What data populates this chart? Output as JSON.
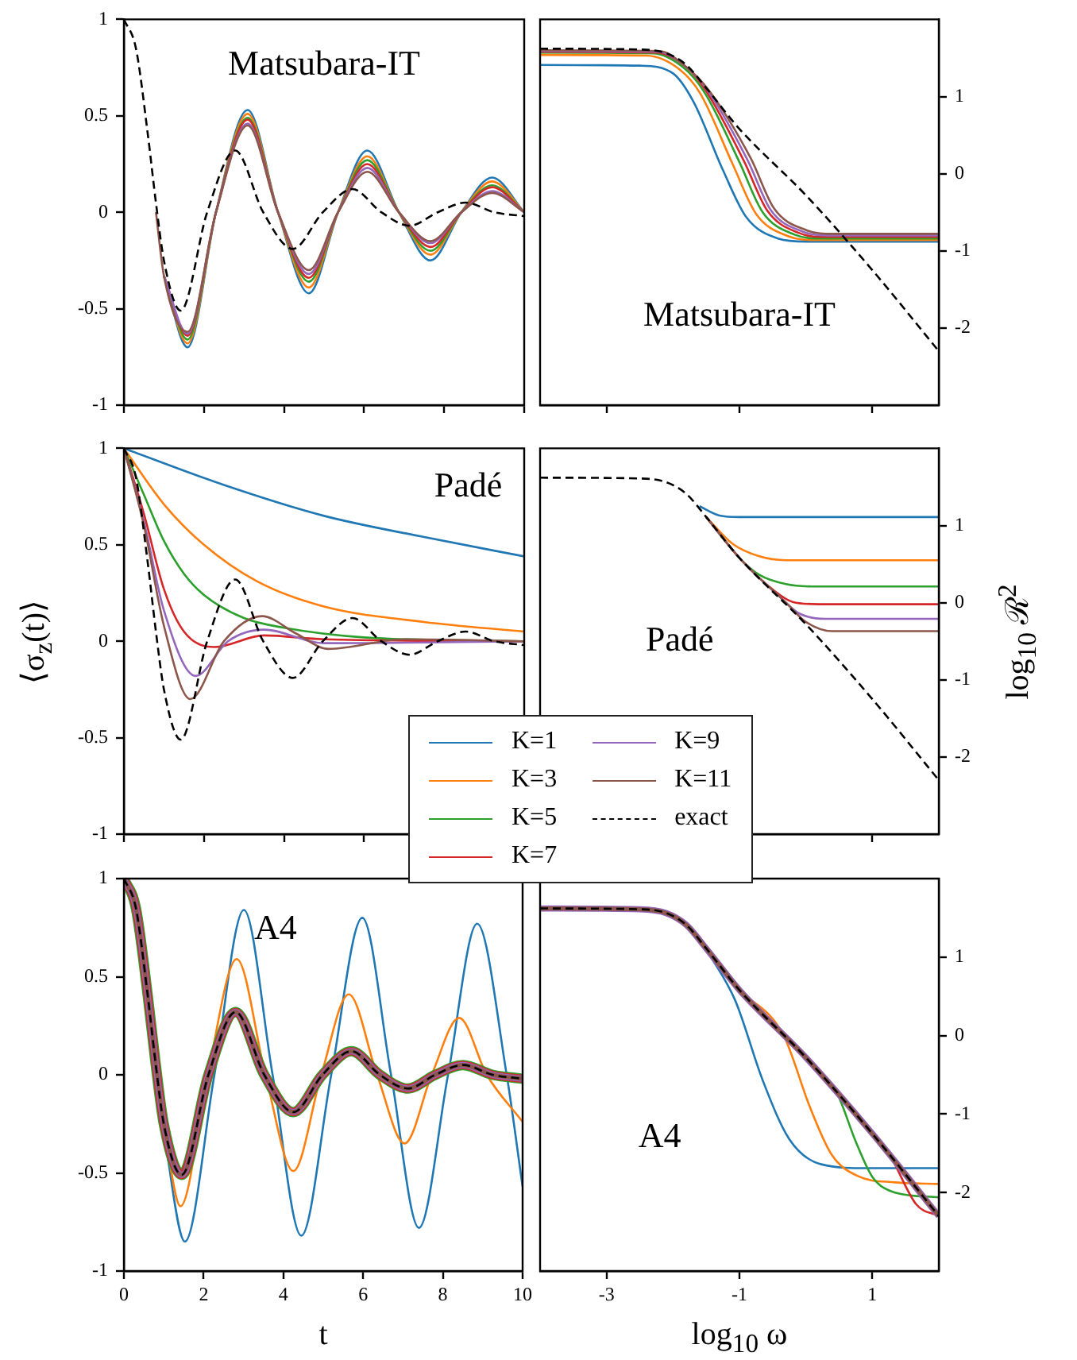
{
  "chart_data": [
    {
      "type": "line",
      "title": "Matsubara-IT",
      "xlim": [
        0,
        10
      ],
      "xticks": [
        0,
        2,
        4,
        6,
        8,
        10
      ],
      "ylim": [
        -1,
        1
      ],
      "yticks": [
        -1,
        -0.5,
        0,
        0.5,
        1
      ],
      "tick_labels": "y",
      "series": [
        {
          "color": "#1f77b4",
          "x": [
            1.0,
            1.59,
            2.3,
            3.09,
            3.85,
            4.62,
            5.35,
            6.08,
            6.87,
            7.66,
            8.43,
            9.2,
            10
          ],
          "values": [
            -0.33,
            -0.7,
            0,
            0.53,
            0,
            -0.42,
            0,
            0.32,
            0,
            -0.25,
            0,
            0.18,
            0
          ]
        },
        {
          "color": "#ff7f0e",
          "x": [
            1.0,
            1.59,
            2.3,
            3.09,
            3.85,
            4.62,
            5.35,
            6.08,
            6.87,
            7.66,
            8.43,
            9.2,
            10
          ],
          "values": [
            -0.33,
            -0.68,
            0,
            0.51,
            0,
            -0.39,
            0,
            0.29,
            0,
            -0.22,
            0,
            0.16,
            0
          ]
        },
        {
          "color": "#2ca02c",
          "x": [
            1.0,
            1.59,
            2.3,
            3.09,
            3.85,
            4.62,
            5.35,
            6.08,
            6.87,
            7.66,
            8.43,
            9.2,
            10
          ],
          "values": [
            -0.33,
            -0.66,
            0,
            0.49,
            0,
            -0.36,
            0,
            0.27,
            0,
            -0.2,
            0,
            0.14,
            0
          ]
        },
        {
          "color": "#d62728",
          "x": [
            1.0,
            1.59,
            2.3,
            3.09,
            3.85,
            4.62,
            5.35,
            6.08,
            6.87,
            7.66,
            8.43,
            9.2,
            10
          ],
          "values": [
            -0.33,
            -0.64,
            0,
            0.48,
            0,
            -0.34,
            0,
            0.25,
            0,
            -0.18,
            0,
            0.13,
            0
          ]
        },
        {
          "color": "#9467bd",
          "x": [
            1.0,
            1.59,
            2.3,
            3.09,
            3.85,
            4.62,
            5.35,
            6.08,
            6.87,
            7.66,
            8.43,
            9.2,
            10
          ],
          "values": [
            -0.33,
            -0.63,
            0,
            0.46,
            0,
            -0.32,
            0,
            0.23,
            0,
            -0.16,
            0,
            0.11,
            0
          ]
        },
        {
          "color": "#8c564b",
          "x": [
            0.8,
            1.0,
            1.59,
            2.3,
            3.09,
            3.85,
            4.62,
            5.35,
            6.08,
            6.87,
            7.66,
            8.43,
            9.2,
            10
          ],
          "values": [
            0.0,
            -0.33,
            -0.62,
            0,
            0.45,
            0,
            -0.3,
            0,
            0.21,
            0,
            -0.15,
            0,
            0.1,
            0
          ]
        },
        {
          "color": "#000000",
          "line_style": "dashed",
          "x": [
            0,
            0.3,
            0.6,
            0.8,
            1.0,
            1.42,
            2.08,
            2.78,
            3.48,
            4.22,
            4.97,
            5.71,
            6.43,
            7.14,
            7.84,
            8.54,
            9.25,
            10
          ],
          "values": [
            1,
            0.85,
            0.4,
            0.05,
            -0.25,
            -0.51,
            0,
            0.32,
            0,
            -0.19,
            0,
            0.12,
            0,
            -0.07,
            0,
            0.05,
            0,
            -0.02
          ]
        }
      ]
    },
    {
      "type": "line",
      "title": "Matsubara-IT",
      "xlim": [
        -4,
        2
      ],
      "xticks": [
        -3,
        -1,
        1
      ],
      "ylim": [
        -3,
        2
      ],
      "yticks": [
        -2,
        -1,
        0,
        1
      ],
      "tick_labels": "y",
      "series": [
        {
          "color": "#1f77b4",
          "x": [
            -4,
            -2.5,
            -2.0,
            -1.69,
            -1.25,
            -0.9,
            -0.42,
            0,
            2
          ],
          "values": [
            1.41,
            1.4,
            1.3,
            0.93,
            0.05,
            -0.56,
            -0.84,
            -0.88,
            -0.88
          ]
        },
        {
          "color": "#ff7f0e",
          "x": [
            -4,
            -2.4,
            -1.9,
            -1.59,
            -1.1,
            -0.75,
            -0.27,
            0.15,
            2
          ],
          "values": [
            1.54,
            1.53,
            1.35,
            1.04,
            0.12,
            -0.52,
            -0.81,
            -0.86,
            -0.86
          ]
        },
        {
          "color": "#2ca02c",
          "x": [
            -4,
            -2.3,
            -1.85,
            -1.53,
            -1.0,
            -0.65,
            -0.17,
            0.25,
            2
          ],
          "values": [
            1.57,
            1.56,
            1.38,
            1.06,
            0.15,
            -0.5,
            -0.79,
            -0.84,
            -0.84
          ]
        },
        {
          "color": "#d62728",
          "x": [
            -4,
            -2.25,
            -1.8,
            -1.5,
            -0.93,
            -0.58,
            -0.1,
            0.32,
            2
          ],
          "values": [
            1.58,
            1.57,
            1.38,
            1.07,
            0.16,
            -0.48,
            -0.77,
            -0.82,
            -0.82
          ]
        },
        {
          "color": "#9467bd",
          "x": [
            -4,
            -2.22,
            -1.8,
            -1.48,
            -0.88,
            -0.53,
            -0.05,
            0.37,
            2
          ],
          "values": [
            1.59,
            1.58,
            1.38,
            1.08,
            0.18,
            -0.47,
            -0.75,
            -0.8,
            -0.8
          ]
        },
        {
          "color": "#8c564b",
          "x": [
            -4,
            -2.2,
            -1.8,
            -1.46,
            -0.83,
            -0.48,
            0,
            0.42,
            2
          ],
          "values": [
            1.6,
            1.59,
            1.38,
            1.08,
            0.2,
            -0.45,
            -0.73,
            -0.78,
            -0.78
          ]
        },
        {
          "color": "#000000",
          "line_style": "dashed",
          "x": [
            -4,
            -2.5,
            -2.1,
            -1.8,
            -1.5,
            -1,
            0,
            1,
            2
          ],
          "values": [
            1.62,
            1.61,
            1.56,
            1.41,
            1.11,
            0.58,
            -0.28,
            -1.25,
            -2.3
          ]
        }
      ]
    },
    {
      "type": "line",
      "title": "Padé",
      "ylabel": "⟨σ$_{z}$(t)⟩",
      "xlim": [
        0,
        10
      ],
      "xticks": [
        0,
        2,
        4,
        6,
        8,
        10
      ],
      "ylim": [
        -1,
        1
      ],
      "yticks": [
        -1,
        -0.5,
        0,
        0.5,
        1
      ],
      "tick_labels": "y",
      "legend": "bottom right",
      "series": [
        {
          "name": "K=1",
          "color": "#1f77b4",
          "x": [
            0,
            2.5,
            5,
            7.5,
            10
          ],
          "values": [
            1,
            0.81,
            0.65,
            0.54,
            0.44
          ]
        },
        {
          "name": "K=3",
          "color": "#ff7f0e",
          "x": [
            0,
            1,
            2,
            3.33,
            5,
            7.5,
            10
          ],
          "values": [
            1,
            0.71,
            0.5,
            0.31,
            0.18,
            0.1,
            0.05
          ]
        },
        {
          "name": "K=5",
          "color": "#2ca02c",
          "x": [
            0,
            0.5,
            1,
            1.5,
            2,
            3,
            4,
            6,
            10
          ],
          "values": [
            1,
            0.76,
            0.52,
            0.35,
            0.24,
            0.12,
            0.07,
            0.02,
            0
          ]
        },
        {
          "name": "K=7",
          "color": "#d62728",
          "x": [
            0,
            0.5,
            1,
            1.5,
            2.26,
            3.5,
            5,
            10
          ],
          "values": [
            1,
            0.66,
            0.27,
            0.05,
            -0.03,
            0.03,
            0.01,
            0
          ]
        },
        {
          "name": "K=9",
          "color": "#9467bd",
          "x": [
            0,
            0.5,
            1,
            1.79,
            2.6,
            3.5,
            5,
            10
          ],
          "values": [
            1,
            0.62,
            0.16,
            -0.18,
            0,
            0.06,
            -0.01,
            0
          ]
        },
        {
          "name": "K=11",
          "color": "#8c564b",
          "x": [
            0,
            0.5,
            1,
            1.66,
            2.5,
            3.45,
            4.3,
            5.11,
            7,
            10
          ],
          "values": [
            1,
            0.6,
            0.08,
            -0.3,
            0,
            0.13,
            0.04,
            -0.04,
            0.01,
            0
          ]
        },
        {
          "name": "exact",
          "color": "#000000",
          "line_style": "dashed",
          "x": [
            0,
            0.3,
            0.6,
            0.8,
            1.0,
            1.42,
            2.08,
            2.78,
            3.48,
            4.22,
            4.97,
            5.71,
            6.43,
            7.14,
            7.84,
            8.54,
            9.25,
            10
          ],
          "values": [
            1,
            0.85,
            0.4,
            0.05,
            -0.25,
            -0.51,
            0,
            0.32,
            0,
            -0.19,
            0,
            0.12,
            0,
            -0.07,
            0,
            0.05,
            0,
            -0.02
          ]
        }
      ]
    },
    {
      "type": "line",
      "title": "Padé",
      "ylabel": "log$_{10}$ ℛ$^{2}$",
      "xlim": [
        -4,
        2
      ],
      "xticks": [
        -3,
        -1,
        1
      ],
      "ylim": [
        -3,
        2
      ],
      "yticks": [
        -2,
        -1,
        0,
        1
      ],
      "tick_labels": "y",
      "series": [
        {
          "color": "#1f77b4",
          "x": [
            -1.6,
            -1.3,
            -1.0,
            2
          ],
          "values": [
            1.25,
            1.13,
            1.11,
            1.11
          ]
        },
        {
          "color": "#ff7f0e",
          "x": [
            -1.5,
            -1.1,
            -0.7,
            -0.3,
            2
          ],
          "values": [
            1.11,
            0.76,
            0.6,
            0.55,
            0.55
          ]
        },
        {
          "color": "#2ca02c",
          "x": [
            -1.5,
            -1.0,
            -0.7,
            -0.3,
            0.1,
            2
          ],
          "values": [
            1.11,
            0.58,
            0.36,
            0.24,
            0.21,
            0.21
          ]
        },
        {
          "color": "#d62728",
          "x": [
            -1.5,
            -1.0,
            -0.5,
            -0.2,
            0.2,
            2
          ],
          "values": [
            1.11,
            0.58,
            0.17,
            0.01,
            -0.02,
            -0.02
          ]
        },
        {
          "color": "#9467bd",
          "x": [
            -1.5,
            -1.0,
            -0.4,
            -0.1,
            0.3,
            2
          ],
          "values": [
            1.11,
            0.58,
            0.08,
            -0.14,
            -0.21,
            -0.21
          ]
        },
        {
          "color": "#8c564b",
          "x": [
            -1.5,
            -1.0,
            -0.3,
            0.0,
            0.4,
            2
          ],
          "values": [
            1.11,
            0.58,
            0.0,
            -0.25,
            -0.37,
            -0.37
          ]
        },
        {
          "color": "#000000",
          "line_style": "dashed",
          "x": [
            -4,
            -2.5,
            -2.1,
            -1.8,
            -1.5,
            -1,
            0,
            1,
            2
          ],
          "values": [
            1.62,
            1.61,
            1.56,
            1.41,
            1.11,
            0.58,
            -0.28,
            -1.25,
            -2.3
          ]
        }
      ]
    },
    {
      "type": "line",
      "title": "A4",
      "xlabel": "t",
      "xlim": [
        0,
        10
      ],
      "xticks": [
        0,
        2,
        4,
        6,
        8,
        10
      ],
      "ylim": [
        -1,
        1
      ],
      "yticks": [
        -1,
        -0.5,
        0,
        0.5,
        1
      ],
      "x": [
        0,
        0.3,
        0.6,
        0.8,
        1.0,
        1.45,
        2.12,
        2.8,
        3.52,
        4.25,
        4.98,
        5.71,
        6.42,
        7.12,
        7.81,
        8.5,
        9.25,
        10
      ],
      "series": [
        {
          "color": "#1f77b4",
          "x": [
            1.0,
            1.53,
            2.27,
            3.01,
            3.73,
            4.45,
            5.2,
            5.98,
            6.7,
            7.4,
            8.13,
            8.86,
            9.6,
            10
          ],
          "values": [
            -0.3,
            -0.85,
            0,
            0.84,
            0,
            -0.82,
            0,
            0.8,
            0,
            -0.78,
            0,
            0.77,
            0,
            -0.57
          ]
        },
        {
          "color": "#ff7f0e",
          "x": [
            1.0,
            1.42,
            2.1,
            2.83,
            3.55,
            4.25,
            4.95,
            5.64,
            6.35,
            7.04,
            7.72,
            8.41,
            9.1,
            10
          ],
          "values": [
            -0.27,
            -0.67,
            0,
            0.59,
            0,
            -0.49,
            0,
            0.41,
            0,
            -0.35,
            0,
            0.29,
            0,
            -0.24
          ]
        },
        {
          "color": "#2ca02c",
          "values": [
            1,
            0.85,
            0.4,
            0.05,
            -0.25,
            -0.51,
            0,
            0.32,
            0,
            -0.19,
            0,
            0.12,
            0,
            -0.07,
            0,
            0.05,
            0,
            -0.02
          ]
        },
        {
          "color": "#d62728",
          "values": [
            1,
            0.85,
            0.4,
            0.05,
            -0.25,
            -0.51,
            0,
            0.32,
            0,
            -0.19,
            0,
            0.12,
            0,
            -0.07,
            0,
            0.05,
            0,
            -0.02
          ]
        },
        {
          "color": "#9467bd",
          "values": [
            1,
            0.85,
            0.4,
            0.05,
            -0.25,
            -0.51,
            0,
            0.32,
            0,
            -0.19,
            0,
            0.12,
            0,
            -0.07,
            0,
            0.05,
            0,
            -0.02
          ]
        },
        {
          "color": "#8c564b",
          "values": [
            1,
            0.85,
            0.4,
            0.05,
            -0.25,
            -0.51,
            0,
            0.32,
            0,
            -0.19,
            0,
            0.12,
            0,
            -0.07,
            0,
            0.05,
            0,
            -0.02
          ]
        },
        {
          "color": "#000000",
          "line_style": "dashed",
          "values": [
            1,
            0.85,
            0.4,
            0.05,
            -0.25,
            -0.51,
            0,
            0.32,
            0,
            -0.19,
            0,
            0.12,
            0,
            -0.07,
            0,
            0.05,
            0,
            -0.02
          ]
        }
      ]
    },
    {
      "type": "line",
      "title": "A4",
      "xlabel": "log$_{10}$ ω",
      "xlim": [
        -4,
        2
      ],
      "xticks": [
        -3,
        -1,
        1
      ],
      "ylim": [
        -3,
        2
      ],
      "yticks": [
        -2,
        -1,
        0,
        1
      ],
      "x": [
        -4,
        -2.5,
        -2.1,
        -1.8,
        -1.5,
        -1,
        0,
        1,
        2
      ],
      "series": [
        {
          "color": "#1f77b4",
          "x": [
            -1.69,
            -1.4,
            -1.06,
            -0.65,
            -0.25,
            0.23,
            0.94,
            2
          ],
          "values": [
            1.31,
            0.96,
            0.44,
            -0.57,
            -1.32,
            -1.64,
            -1.69,
            -1.69
          ]
        },
        {
          "color": "#ff7f0e",
          "x": [
            -1,
            -0.34,
            0.06,
            0.39,
            0.78,
            1.34,
            2
          ],
          "values": [
            0.58,
            0.01,
            -0.91,
            -1.52,
            -1.79,
            -1.87,
            -1.89
          ]
        },
        {
          "color": "#2ca02c",
          "x": [
            0,
            0.47,
            0.75,
            1.0,
            1.34,
            2
          ],
          "values": [
            -0.28,
            -0.74,
            -1.35,
            -1.8,
            -2.0,
            -2.06
          ]
        },
        {
          "color": "#d62728",
          "x": [
            1,
            1.26,
            1.66,
            2
          ],
          "values": [
            -1.25,
            -1.52,
            -2.15,
            -2.3
          ]
        },
        {
          "color": "#9467bd",
          "values": [
            1.62,
            1.61,
            1.56,
            1.41,
            1.11,
            0.58,
            -0.28,
            -1.25,
            -2.3
          ]
        },
        {
          "color": "#8c564b",
          "values": [
            1.62,
            1.61,
            1.56,
            1.41,
            1.11,
            0.58,
            -0.28,
            -1.25,
            -2.3
          ]
        },
        {
          "color": "#000000",
          "line_style": "dashed",
          "values": [
            1.62,
            1.61,
            1.56,
            1.41,
            1.11,
            0.58,
            -0.28,
            -1.25,
            -2.3
          ]
        }
      ]
    }
  ]
}
